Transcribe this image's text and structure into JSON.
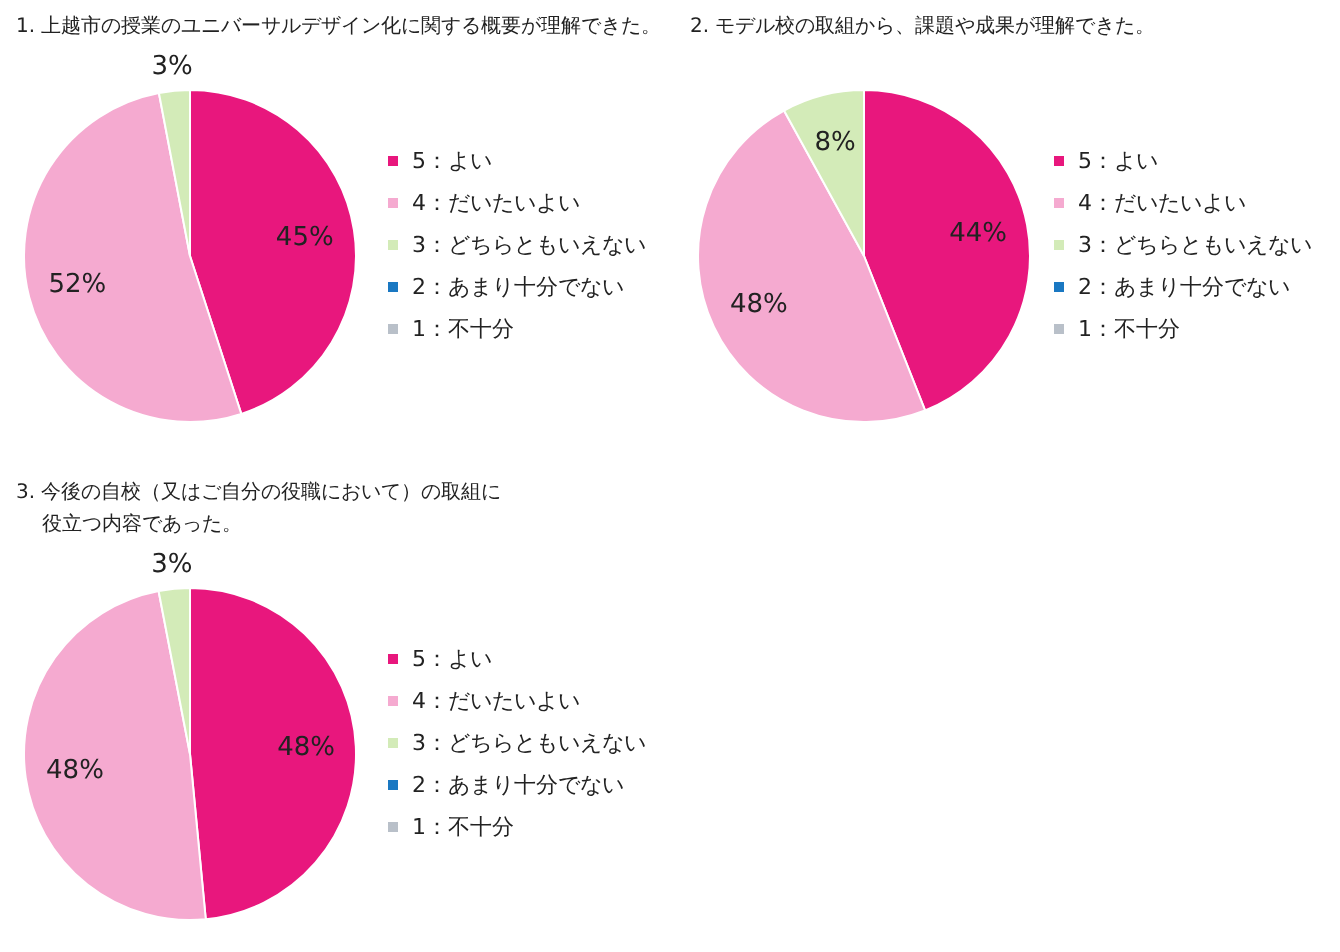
{
  "chart_data": [
    {
      "type": "pie",
      "title": "1. 上越市の授業のユニバーサルデザイン化に関する概要が理解できた。",
      "categories": [
        "5：よい",
        "4：だいたいよい",
        "3：どちらともいえない",
        "2：あまり十分でない",
        "1：不十分"
      ],
      "values": [
        45,
        52,
        3,
        0,
        0
      ],
      "colors": [
        "#e8177d",
        "#f5aad0",
        "#d3ebb8",
        "#1a78c2",
        "#b9c0c9"
      ],
      "value_labels": [
        "45%",
        "52%",
        "3%",
        null,
        null
      ],
      "legend": "right"
    },
    {
      "type": "pie",
      "title": "2. モデル校の取組から、課題や成果が理解できた。",
      "categories": [
        "5：よい",
        "4：だいたいよい",
        "3：どちらともいえない",
        "2：あまり十分でない",
        "1：不十分"
      ],
      "values": [
        44,
        48,
        8,
        0,
        0
      ],
      "colors": [
        "#e8177d",
        "#f5aad0",
        "#d3ebb8",
        "#1a78c2",
        "#b9c0c9"
      ],
      "value_labels": [
        "44%",
        "48%",
        "8%",
        null,
        null
      ],
      "legend": "right"
    },
    {
      "type": "pie",
      "title": "3. 今後の自校（又はご自分の役職において）の取組に役立つ内容であった。",
      "categories": [
        "5：よい",
        "4：だいたいよい",
        "3：どちらともいえない",
        "2：あまり十分でない",
        "1：不十分"
      ],
      "values": [
        48,
        48,
        3,
        0,
        0
      ],
      "colors": [
        "#e8177d",
        "#f5aad0",
        "#d3ebb8",
        "#1a78c2",
        "#b9c0c9"
      ],
      "value_labels": [
        "48%",
        "48%",
        "3%",
        null,
        null
      ],
      "legend": "right"
    }
  ]
}
